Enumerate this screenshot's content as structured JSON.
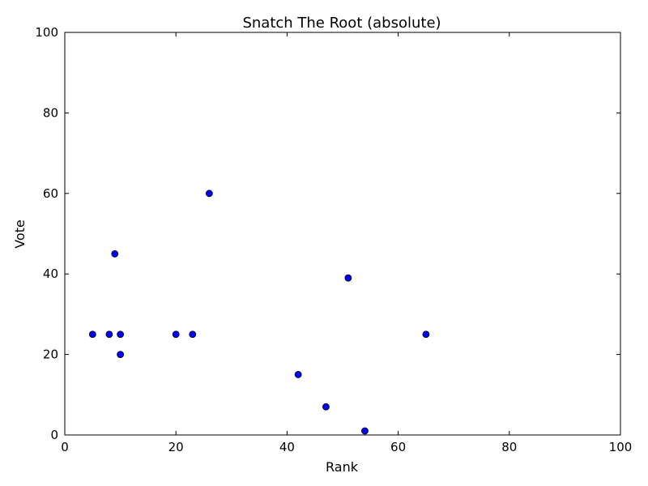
{
  "chart_data": {
    "type": "scatter",
    "title": "Snatch The Root (absolute)",
    "xlabel": "Rank",
    "ylabel": "Vote",
    "xlim": [
      0,
      100
    ],
    "ylim": [
      0,
      100
    ],
    "xticks": [
      0,
      20,
      40,
      60,
      80,
      100
    ],
    "yticks": [
      0,
      20,
      40,
      60,
      80,
      100
    ],
    "grid": false,
    "marker_color": "#0000ff",
    "marker_edge_color": "#000000",
    "points": [
      {
        "x": 5,
        "y": 25
      },
      {
        "x": 8,
        "y": 25
      },
      {
        "x": 9,
        "y": 45
      },
      {
        "x": 10,
        "y": 25
      },
      {
        "x": 10,
        "y": 20
      },
      {
        "x": 20,
        "y": 25
      },
      {
        "x": 23,
        "y": 25
      },
      {
        "x": 26,
        "y": 60
      },
      {
        "x": 42,
        "y": 15
      },
      {
        "x": 47,
        "y": 7
      },
      {
        "x": 51,
        "y": 39
      },
      {
        "x": 54,
        "y": 1
      },
      {
        "x": 65,
        "y": 25
      }
    ]
  }
}
